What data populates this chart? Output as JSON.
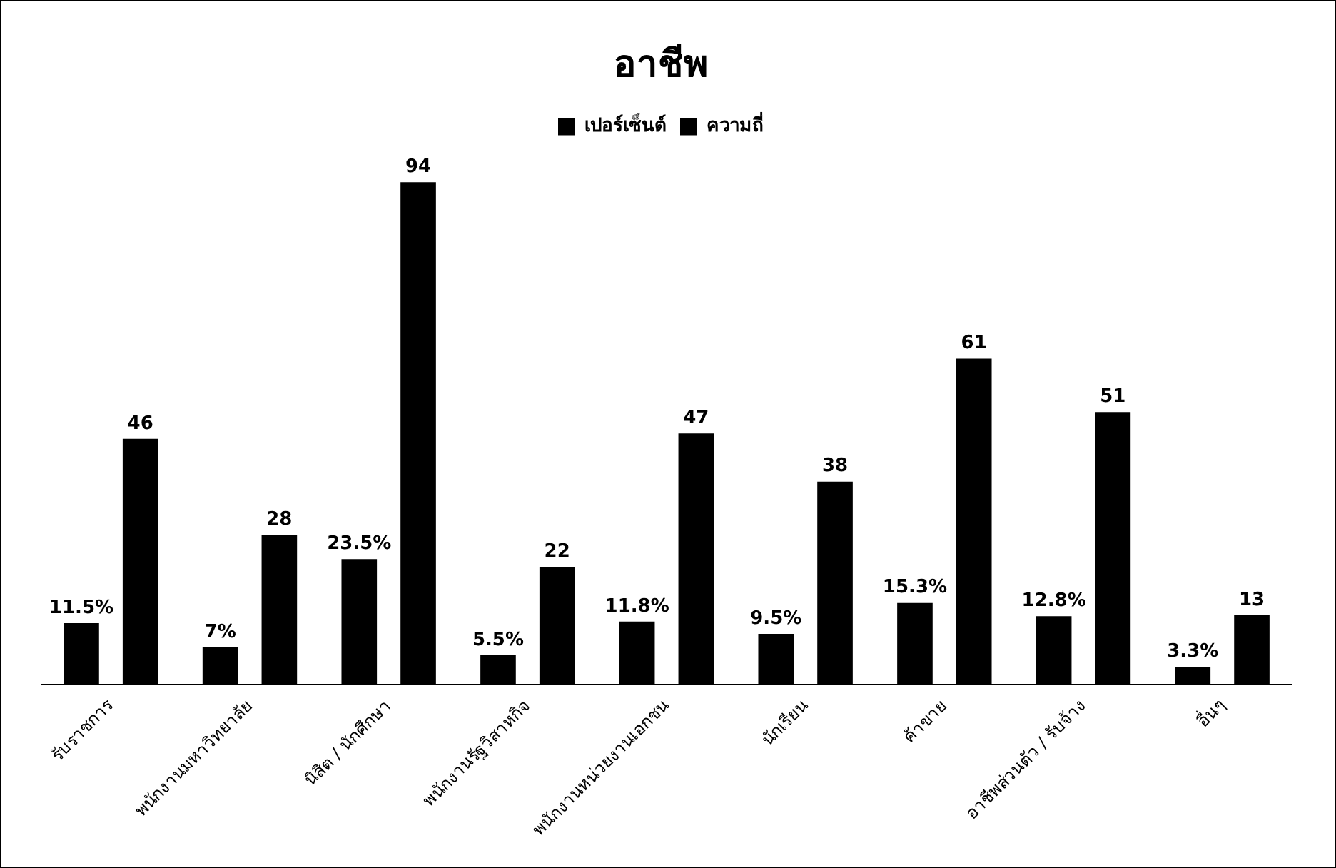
{
  "chart_data": {
    "type": "bar",
    "title": "อาชีพ",
    "categories": [
      "รับราชการ",
      "พนักงานมหาวิทยาลัย",
      "นิสิต / นักศึกษา",
      "พนักงานรัฐวิสาหกิจ",
      "พนักงานหน่วยงานเอกชน",
      "นักเรียน",
      "ค้าขาย",
      "อาชีพส่วนตัว / รับจ้าง",
      "อื่นๆ"
    ],
    "series": [
      {
        "name": "เปอร์เซ็นต์",
        "color": "#000000",
        "values": [
          11.5,
          7,
          23.5,
          5.5,
          11.8,
          9.5,
          15.3,
          12.8,
          3.3
        ],
        "value_labels": [
          "11.5%",
          "7%",
          "23.5%",
          "5.5%",
          "11.8%",
          "9.5%",
          "15.3%",
          "12.8%",
          "3.3%"
        ]
      },
      {
        "name": "ความถี่",
        "color": "#000000",
        "values": [
          46,
          28,
          94,
          22,
          47,
          38,
          61,
          51,
          13
        ],
        "value_labels": [
          "46",
          "28",
          "94",
          "22",
          "47",
          "38",
          "61",
          "51",
          "13"
        ]
      }
    ],
    "legend": "top",
    "grid": false
  }
}
